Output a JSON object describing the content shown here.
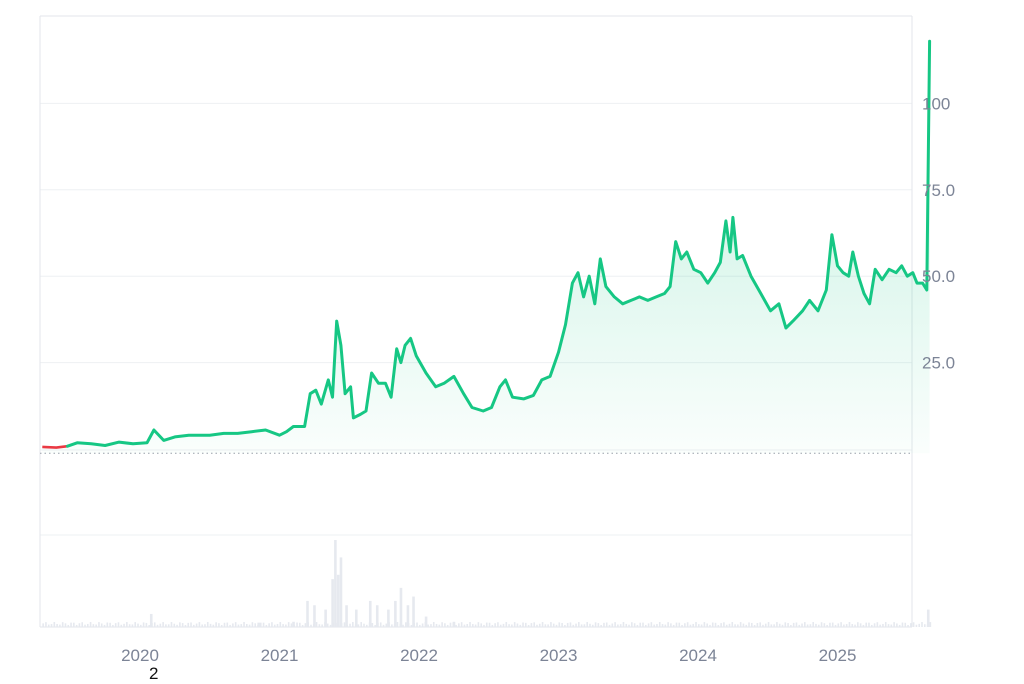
{
  "footnote": "2",
  "colors": {
    "line_up": "#16c784",
    "line_down": "#ea3943",
    "area_top": "#16c784",
    "volume": "#e6e9ef",
    "grid": "#eef0f3",
    "frame": "#e3e6eb",
    "baseline": "#9aa0aa",
    "tick_text": "#7c8496"
  },
  "chart_data": {
    "type": "area",
    "x_ticks": [
      "2020",
      "2021",
      "2022",
      "2023",
      "2024",
      "2025"
    ],
    "y_ticks": [
      "25.0",
      "50.0",
      "75.0",
      "100"
    ],
    "ylim": [
      0,
      120
    ],
    "grid": true,
    "baseline_value": 0.5,
    "series": [
      {
        "values": [
          {
            "x": 2019.3,
            "y": 0.6
          },
          {
            "x": 2019.4,
            "y": 0.4
          },
          {
            "x": 2019.48,
            "y": 0.8
          },
          {
            "x": 2019.55,
            "y": 1.8
          },
          {
            "x": 2019.65,
            "y": 1.5
          },
          {
            "x": 2019.75,
            "y": 1.0
          },
          {
            "x": 2019.85,
            "y": 2.0
          },
          {
            "x": 2019.95,
            "y": 1.5
          },
          {
            "x": 2020.05,
            "y": 1.8
          },
          {
            "x": 2020.1,
            "y": 5.5
          },
          {
            "x": 2020.17,
            "y": 2.5
          },
          {
            "x": 2020.25,
            "y": 3.5
          },
          {
            "x": 2020.35,
            "y": 4.0
          },
          {
            "x": 2020.5,
            "y": 4.0
          },
          {
            "x": 2020.6,
            "y": 4.5
          },
          {
            "x": 2020.7,
            "y": 4.5
          },
          {
            "x": 2020.8,
            "y": 5.0
          },
          {
            "x": 2020.9,
            "y": 5.5
          },
          {
            "x": 2021.0,
            "y": 4.0
          },
          {
            "x": 2021.05,
            "y": 5.0
          },
          {
            "x": 2021.1,
            "y": 6.5
          },
          {
            "x": 2021.18,
            "y": 6.5
          },
          {
            "x": 2021.22,
            "y": 16.0
          },
          {
            "x": 2021.26,
            "y": 17.0
          },
          {
            "x": 2021.3,
            "y": 13.0
          },
          {
            "x": 2021.35,
            "y": 20.0
          },
          {
            "x": 2021.38,
            "y": 15.0
          },
          {
            "x": 2021.41,
            "y": 37.0
          },
          {
            "x": 2021.44,
            "y": 30.0
          },
          {
            "x": 2021.47,
            "y": 16.0
          },
          {
            "x": 2021.51,
            "y": 18.0
          },
          {
            "x": 2021.53,
            "y": 9.0
          },
          {
            "x": 2021.58,
            "y": 10.0
          },
          {
            "x": 2021.62,
            "y": 11.0
          },
          {
            "x": 2021.66,
            "y": 22.0
          },
          {
            "x": 2021.71,
            "y": 19.0
          },
          {
            "x": 2021.76,
            "y": 19.0
          },
          {
            "x": 2021.8,
            "y": 15.0
          },
          {
            "x": 2021.84,
            "y": 29.0
          },
          {
            "x": 2021.87,
            "y": 25.0
          },
          {
            "x": 2021.9,
            "y": 30.0
          },
          {
            "x": 2021.94,
            "y": 32.0
          },
          {
            "x": 2021.98,
            "y": 27.0
          },
          {
            "x": 2022.05,
            "y": 22.0
          },
          {
            "x": 2022.12,
            "y": 18.0
          },
          {
            "x": 2022.18,
            "y": 19.0
          },
          {
            "x": 2022.25,
            "y": 21.0
          },
          {
            "x": 2022.32,
            "y": 16.0
          },
          {
            "x": 2022.38,
            "y": 12.0
          },
          {
            "x": 2022.46,
            "y": 11.0
          },
          {
            "x": 2022.52,
            "y": 12.0
          },
          {
            "x": 2022.58,
            "y": 18.0
          },
          {
            "x": 2022.62,
            "y": 20.0
          },
          {
            "x": 2022.67,
            "y": 15.0
          },
          {
            "x": 2022.75,
            "y": 14.5
          },
          {
            "x": 2022.82,
            "y": 15.5
          },
          {
            "x": 2022.88,
            "y": 20.0
          },
          {
            "x": 2022.94,
            "y": 21.0
          },
          {
            "x": 2023.0,
            "y": 28.0
          },
          {
            "x": 2023.05,
            "y": 36.0
          },
          {
            "x": 2023.1,
            "y": 48.0
          },
          {
            "x": 2023.14,
            "y": 51.0
          },
          {
            "x": 2023.18,
            "y": 44.0
          },
          {
            "x": 2023.22,
            "y": 50.0
          },
          {
            "x": 2023.26,
            "y": 42.0
          },
          {
            "x": 2023.3,
            "y": 55.0
          },
          {
            "x": 2023.34,
            "y": 47.0
          },
          {
            "x": 2023.4,
            "y": 44.0
          },
          {
            "x": 2023.46,
            "y": 42.0
          },
          {
            "x": 2023.52,
            "y": 43.0
          },
          {
            "x": 2023.58,
            "y": 44.0
          },
          {
            "x": 2023.64,
            "y": 43.0
          },
          {
            "x": 2023.7,
            "y": 44.0
          },
          {
            "x": 2023.76,
            "y": 45.0
          },
          {
            "x": 2023.8,
            "y": 47.0
          },
          {
            "x": 2023.84,
            "y": 60.0
          },
          {
            "x": 2023.88,
            "y": 55.0
          },
          {
            "x": 2023.92,
            "y": 57.0
          },
          {
            "x": 2023.97,
            "y": 52.0
          },
          {
            "x": 2024.02,
            "y": 51.0
          },
          {
            "x": 2024.07,
            "y": 48.0
          },
          {
            "x": 2024.12,
            "y": 51.0
          },
          {
            "x": 2024.16,
            "y": 54.0
          },
          {
            "x": 2024.2,
            "y": 66.0
          },
          {
            "x": 2024.23,
            "y": 57.0
          },
          {
            "x": 2024.25,
            "y": 67.0
          },
          {
            "x": 2024.28,
            "y": 55.0
          },
          {
            "x": 2024.32,
            "y": 56.0
          },
          {
            "x": 2024.38,
            "y": 50.0
          },
          {
            "x": 2024.45,
            "y": 45.0
          },
          {
            "x": 2024.52,
            "y": 40.0
          },
          {
            "x": 2024.58,
            "y": 42.0
          },
          {
            "x": 2024.63,
            "y": 35.0
          },
          {
            "x": 2024.68,
            "y": 37.0
          },
          {
            "x": 2024.75,
            "y": 40.0
          },
          {
            "x": 2024.8,
            "y": 43.0
          },
          {
            "x": 2024.86,
            "y": 40.0
          },
          {
            "x": 2024.92,
            "y": 46.0
          },
          {
            "x": 2024.96,
            "y": 62.0
          },
          {
            "x": 2025.0,
            "y": 53.0
          },
          {
            "x": 2025.04,
            "y": 51.0
          },
          {
            "x": 2025.08,
            "y": 50.0
          },
          {
            "x": 2025.11,
            "y": 57.0
          },
          {
            "x": 2025.15,
            "y": 50.0
          },
          {
            "x": 2025.19,
            "y": 45.0
          },
          {
            "x": 2025.23,
            "y": 42.0
          },
          {
            "x": 2025.27,
            "y": 52.0
          },
          {
            "x": 2025.32,
            "y": 49.0
          },
          {
            "x": 2025.37,
            "y": 52.0
          },
          {
            "x": 2025.42,
            "y": 51.0
          },
          {
            "x": 2025.46,
            "y": 53.0
          },
          {
            "x": 2025.5,
            "y": 50.0
          },
          {
            "x": 2025.54,
            "y": 51.0
          },
          {
            "x": 2025.57,
            "y": 48.0
          },
          {
            "x": 2025.61,
            "y": 48.0
          },
          {
            "x": 2025.64,
            "y": 46.0
          },
          {
            "x": 2025.66,
            "y": 118.0
          }
        ]
      }
    ],
    "volume": [
      {
        "x": 2020.08,
        "v": 0.15
      },
      {
        "x": 2020.85,
        "v": 0.05
      },
      {
        "x": 2021.1,
        "v": 0.06
      },
      {
        "x": 2021.2,
        "v": 0.3
      },
      {
        "x": 2021.25,
        "v": 0.25
      },
      {
        "x": 2021.33,
        "v": 0.2
      },
      {
        "x": 2021.38,
        "v": 0.55
      },
      {
        "x": 2021.4,
        "v": 1.0
      },
      {
        "x": 2021.42,
        "v": 0.6
      },
      {
        "x": 2021.44,
        "v": 0.8
      },
      {
        "x": 2021.48,
        "v": 0.25
      },
      {
        "x": 2021.55,
        "v": 0.2
      },
      {
        "x": 2021.65,
        "v": 0.3
      },
      {
        "x": 2021.7,
        "v": 0.25
      },
      {
        "x": 2021.78,
        "v": 0.2
      },
      {
        "x": 2021.83,
        "v": 0.3
      },
      {
        "x": 2021.87,
        "v": 0.45
      },
      {
        "x": 2021.92,
        "v": 0.25
      },
      {
        "x": 2021.96,
        "v": 0.35
      },
      {
        "x": 2022.05,
        "v": 0.12
      },
      {
        "x": 2022.25,
        "v": 0.06
      },
      {
        "x": 2025.65,
        "v": 0.2
      }
    ]
  }
}
